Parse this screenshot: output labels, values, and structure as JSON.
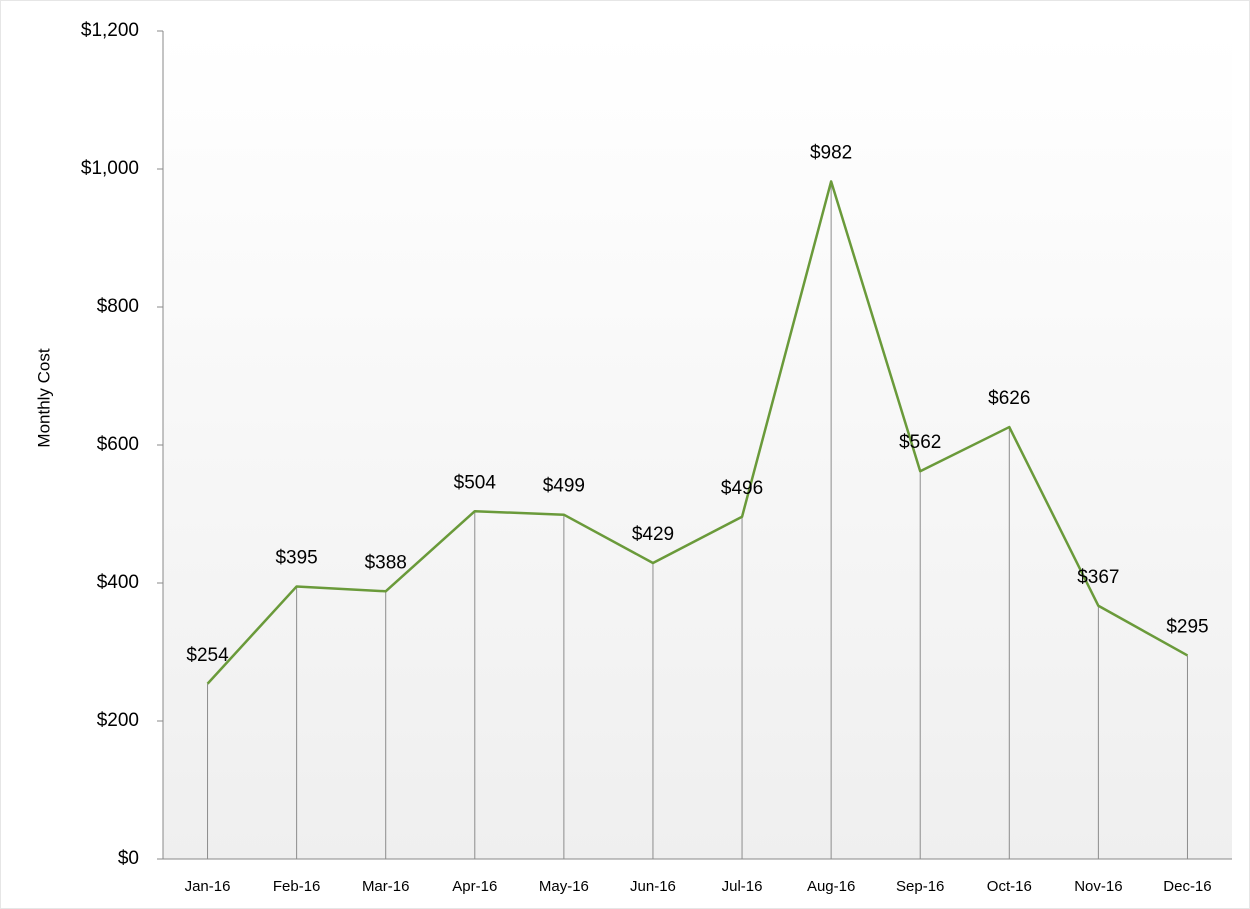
{
  "chart_data": {
    "type": "line",
    "y_label": "Monthly Cost",
    "categories": [
      "Jan-16",
      "Feb-16",
      "Mar-16",
      "Apr-16",
      "May-16",
      "Jun-16",
      "Jul-16",
      "Aug-16",
      "Sep-16",
      "Oct-16",
      "Nov-16",
      "Dec-16"
    ],
    "values": [
      254,
      395,
      388,
      504,
      499,
      429,
      496,
      982,
      562,
      626,
      367,
      295
    ],
    "value_labels": [
      "$254",
      "$395",
      "$388",
      "$504",
      "$499",
      "$429",
      "$496",
      "$982",
      "$562",
      "$626",
      "$367",
      "$295"
    ],
    "color": "#6a9a3a",
    "drop_lines": true,
    "ylim": [
      0,
      1200
    ],
    "yticks": [
      {
        "value": 0,
        "label": "$0"
      },
      {
        "value": 200,
        "label": "$200"
      },
      {
        "value": 400,
        "label": "$400"
      },
      {
        "value": 600,
        "label": "$600"
      },
      {
        "value": 800,
        "label": "$800"
      },
      {
        "value": 1000,
        "label": "$1,000"
      },
      {
        "value": 1200,
        "label": "$1,200"
      }
    ]
  }
}
